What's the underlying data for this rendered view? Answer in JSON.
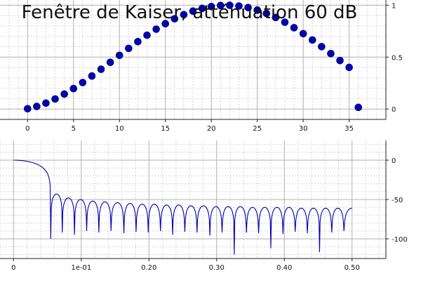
{
  "title": "Fenêtre de Kaiser, atténuation 60 dB",
  "colors": {
    "series": "#0000b4",
    "grid": "#b0b0b0",
    "background": "#ffffff"
  },
  "chart_data": [
    {
      "type": "scatter",
      "name": "window",
      "xlim": [
        -3,
        39
      ],
      "ylim": [
        -0.1,
        1.05
      ],
      "x_ticks": [
        0,
        5,
        10,
        15,
        20,
        25,
        30,
        35
      ],
      "x_tick_labels": [
        "0",
        "5",
        "10",
        "15",
        "20",
        "25",
        "30",
        "35"
      ],
      "y_ticks": [
        0,
        0.5,
        1
      ],
      "y_tick_labels": [
        "0",
        "0.5",
        "1"
      ],
      "grid": true,
      "x": [
        0,
        1,
        2,
        3,
        4,
        5,
        6,
        7,
        8,
        9,
        10,
        11,
        12,
        13,
        14,
        15,
        16,
        17,
        18,
        19,
        20,
        21,
        22,
        23,
        24,
        25,
        26,
        27,
        28,
        29,
        30,
        31,
        32,
        33,
        34,
        35,
        36
      ],
      "values": [
        0.003,
        0.025,
        0.057,
        0.097,
        0.144,
        0.197,
        0.255,
        0.318,
        0.383,
        0.45,
        0.517,
        0.584,
        0.649,
        0.711,
        0.769,
        0.822,
        0.869,
        0.909,
        0.943,
        0.969,
        0.987,
        0.997,
        0.999,
        0.992,
        0.977,
        0.953,
        0.921,
        0.882,
        0.836,
        0.783,
        0.726,
        0.665,
        0.601,
        0.534,
        0.467,
        0.401,
        0.016
      ]
    },
    {
      "type": "line",
      "name": "spectrum",
      "xlim": [
        -0.02,
        0.55
      ],
      "ylim": [
        -125,
        25
      ],
      "x_ticks": [
        0,
        0.1,
        0.2,
        0.3,
        0.4,
        0.5
      ],
      "x_tick_labels": [
        "0",
        "1e-01",
        "0.20",
        "0.30",
        "0.40",
        "0.50"
      ],
      "y_ticks": [
        0,
        -50,
        -100
      ],
      "y_tick_labels": [
        "0",
        "-50",
        "-100"
      ],
      "grid": true,
      "mainlobe_edge": 0.055,
      "nulls": [
        0.055,
        0.072,
        0.09,
        0.108,
        0.126,
        0.144,
        0.163,
        0.181,
        0.199,
        0.217,
        0.235,
        0.253,
        0.271,
        0.29,
        0.308,
        0.326,
        0.344,
        0.362,
        0.38,
        0.398,
        0.416,
        0.434,
        0.452,
        0.47,
        0.488
      ],
      "null_depths": [
        -102,
        -92,
        -95,
        -90,
        -92,
        -90,
        -93,
        -91,
        -92,
        -90,
        -95,
        -91,
        -92,
        -96,
        -92,
        -120,
        -92,
        -93,
        -112,
        -94,
        -91,
        -93,
        -117,
        -92,
        -90
      ],
      "lobe_peaks": [
        -43,
        -48,
        -50,
        -52,
        -53,
        -54,
        -55,
        -56,
        -56,
        -57,
        -57,
        -58,
        -58,
        -59,
        -59,
        -59,
        -60,
        -60,
        -60,
        -60,
        -61,
        -61,
        -61,
        -61,
        -61
      ],
      "x_end": 0.5,
      "y_end": -61
    }
  ]
}
